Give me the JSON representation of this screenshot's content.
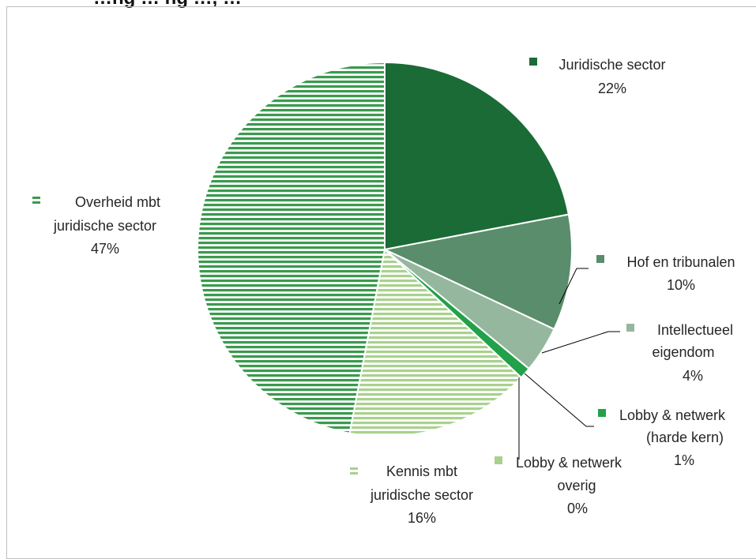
{
  "title": "…ng … ng …, …",
  "chart_data": {
    "type": "pie",
    "title": "",
    "slices": [
      {
        "name": "Juridische sector",
        "value": 22,
        "label": "22%",
        "color": "#1a6b35",
        "pattern": "solid"
      },
      {
        "name": "Hof en tribunalen",
        "value": 10,
        "label": "10%",
        "color": "#5a8d6b",
        "pattern": "solid"
      },
      {
        "name": "Intellectueel eigendom",
        "value": 4,
        "label": "4%",
        "color": "#95b79e",
        "pattern": "solid"
      },
      {
        "name": "Lobby & netwerk (harde kern)",
        "value": 1,
        "label": "1%",
        "color": "#22a14a",
        "pattern": "solid"
      },
      {
        "name": "Lobby & netwerk overig",
        "value": 0,
        "label": "0%",
        "color": "#a9d18e",
        "pattern": "solid"
      },
      {
        "name": "Kennis mbt juridische sector",
        "value": 16,
        "label": "16%",
        "color": "#a9d18e",
        "pattern": "horizontal-lines"
      },
      {
        "name": "Overheid mbt juridische sector",
        "value": 47,
        "label": "47%",
        "color": "#3a9a4e",
        "pattern": "horizontal-lines"
      }
    ],
    "legend": "labels beside slices"
  }
}
